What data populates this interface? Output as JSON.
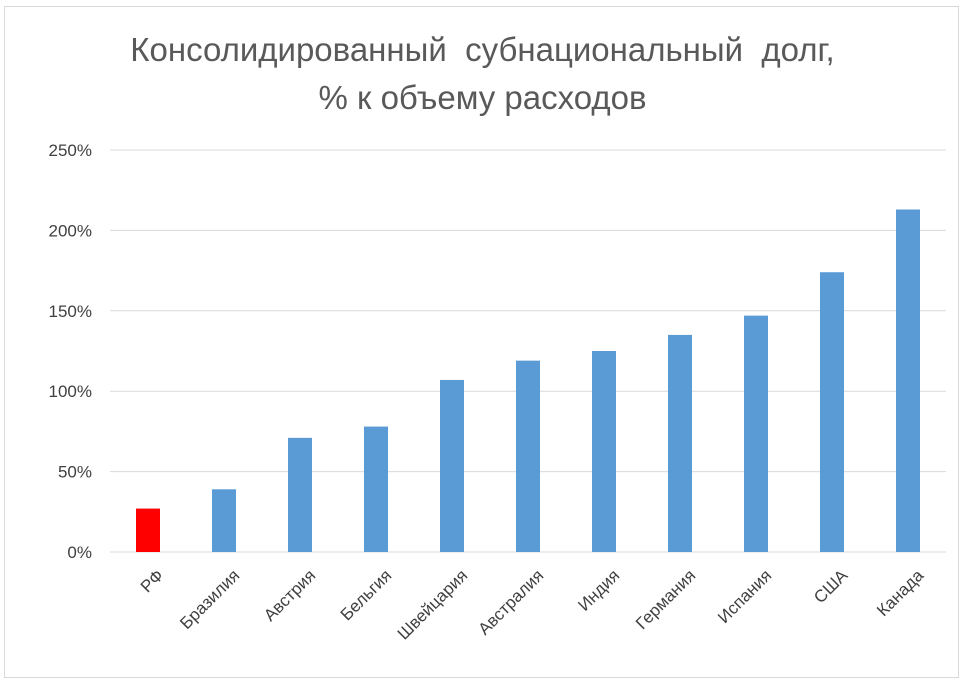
{
  "chart_data": {
    "type": "bar",
    "title": "Консолидированный  субнациональный  долг,",
    "subtitle": "% к объему расходов",
    "xlabel": "",
    "ylabel": "",
    "ylim": [
      0,
      250
    ],
    "y_ticks": [
      "0%",
      "50%",
      "100%",
      "150%",
      "200%",
      "250%"
    ],
    "y_tick_values": [
      0,
      50,
      100,
      150,
      200,
      250
    ],
    "grid": true,
    "legend": "none",
    "categories": [
      "РФ",
      "Бразилия",
      "Австрия",
      "Бельгия",
      "Швейцария",
      "Австралия",
      "Индия",
      "Германия",
      "Испания",
      "США",
      "Канада"
    ],
    "series": [
      {
        "values": [
          27,
          39,
          71,
          78,
          107,
          119,
          125,
          135,
          147,
          174,
          213
        ],
        "colors": [
          "#ff0000",
          "#5b9bd5",
          "#5b9bd5",
          "#5b9bd5",
          "#5b9bd5",
          "#5b9bd5",
          "#5b9bd5",
          "#5b9bd5",
          "#5b9bd5",
          "#5b9bd5",
          "#5b9bd5"
        ]
      }
    ]
  }
}
